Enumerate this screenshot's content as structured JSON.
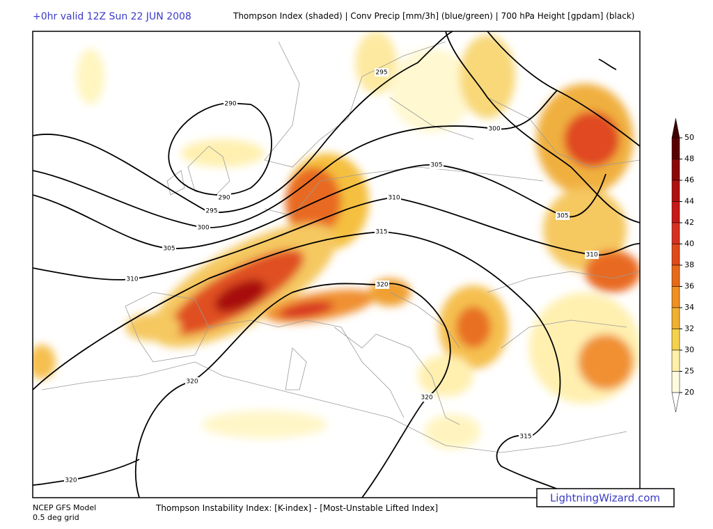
{
  "header": {
    "valid": "+0hr valid 12Z Sun 22 JUN 2008",
    "title": "Thompson Index (shaded) | Conv Precip [mm/3h] (blue/green) | 700 hPa Height [gpdam] (black)"
  },
  "contour_labels": [
    "290",
    "290",
    "295",
    "295",
    "300",
    "300",
    "305",
    "305",
    "305",
    "310",
    "310",
    "310",
    "315",
    "315",
    "320",
    "320",
    "320",
    "320"
  ],
  "legend": {
    "levels": [
      50,
      48,
      46,
      44,
      42,
      40,
      38,
      36,
      34,
      32,
      30,
      25,
      20
    ]
  },
  "footer": {
    "model": "NCEP GFS Model",
    "grid": "0.5 deg grid",
    "description": "Thompson Instability Index: [K-index] - [Most-Unstable Lifted Index]",
    "brand": "LightningWizard.com"
  }
}
